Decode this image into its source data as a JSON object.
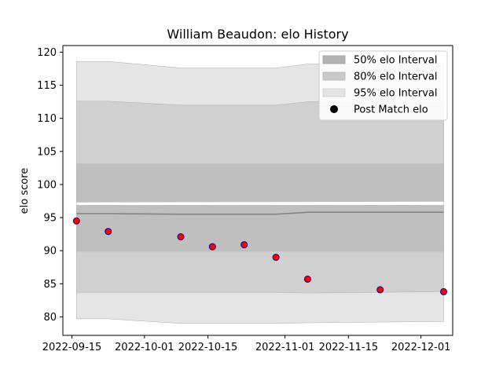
{
  "chart_data": {
    "type": "line",
    "title": "William Beaudon: elo History",
    "xlabel": "",
    "ylabel": "elo score",
    "xlim": [
      "2022-09-13",
      "2022-12-08"
    ],
    "ylim": [
      77.2,
      121.0
    ],
    "x_ticks": [
      "2022-09-15",
      "2022-10-01",
      "2022-10-15",
      "2022-11-01",
      "2022-11-15",
      "2022-12-01"
    ],
    "y_ticks": [
      80,
      85,
      90,
      95,
      100,
      105,
      110,
      115,
      120
    ],
    "grid": false,
    "legend_position": "top-right",
    "legend": [
      "50% elo Interval",
      "80% elo Interval",
      "95% elo Interval",
      "Post Match elo"
    ],
    "bands": [
      {
        "name": "95% elo Interval",
        "color": "#e5e5e5",
        "x": [
          "2022-09-16",
          "2022-09-23",
          "2022-10-09",
          "2022-10-30",
          "2022-11-06",
          "2022-12-06"
        ],
        "lower": [
          79.7,
          79.7,
          79.0,
          79.0,
          79.1,
          79.3
        ],
        "upper": [
          118.6,
          118.6,
          117.6,
          117.6,
          118.2,
          118.3
        ]
      },
      {
        "name": "80% elo Interval",
        "color": "#d0d0d0",
        "x": [
          "2022-09-16",
          "2022-09-23",
          "2022-10-09",
          "2022-10-30",
          "2022-11-06",
          "2022-12-06"
        ],
        "lower": [
          83.7,
          83.7,
          83.7,
          83.7,
          83.6,
          83.8
        ],
        "upper": [
          112.6,
          112.6,
          112.0,
          112.0,
          112.5,
          112.5
        ]
      },
      {
        "name": "50% elo Interval",
        "color": "#bfbfbf",
        "x": [
          "2022-09-16",
          "2022-09-23",
          "2022-10-09",
          "2022-10-30",
          "2022-11-06",
          "2022-12-06"
        ],
        "lower": [
          89.9,
          89.9,
          89.9,
          89.9,
          89.9,
          89.9
        ],
        "upper": [
          103.1,
          103.1,
          103.1,
          103.1,
          103.1,
          103.1
        ]
      }
    ],
    "gap_band": {
      "x": [
        "2022-09-16",
        "2022-12-06"
      ],
      "lower": [
        96.9,
        96.9
      ],
      "upper": [
        97.3,
        97.4
      ]
    },
    "mean_line": {
      "color": "#808080",
      "x": [
        "2022-09-16",
        "2022-09-23",
        "2022-10-09",
        "2022-10-30",
        "2022-11-06",
        "2022-12-06"
      ],
      "y": [
        95.6,
        95.6,
        95.5,
        95.5,
        95.8,
        95.8
      ]
    },
    "series": [
      {
        "name": "Post Match elo",
        "marker_face": "#ff0000",
        "marker_edge": "#00008b",
        "x": [
          "2022-09-16",
          "2022-09-23",
          "2022-10-09",
          "2022-10-16",
          "2022-10-23",
          "2022-10-30",
          "2022-11-06",
          "2022-11-22",
          "2022-12-06"
        ],
        "y": [
          94.5,
          92.9,
          92.1,
          90.6,
          90.9,
          89.0,
          85.7,
          84.1,
          83.8
        ]
      }
    ]
  }
}
